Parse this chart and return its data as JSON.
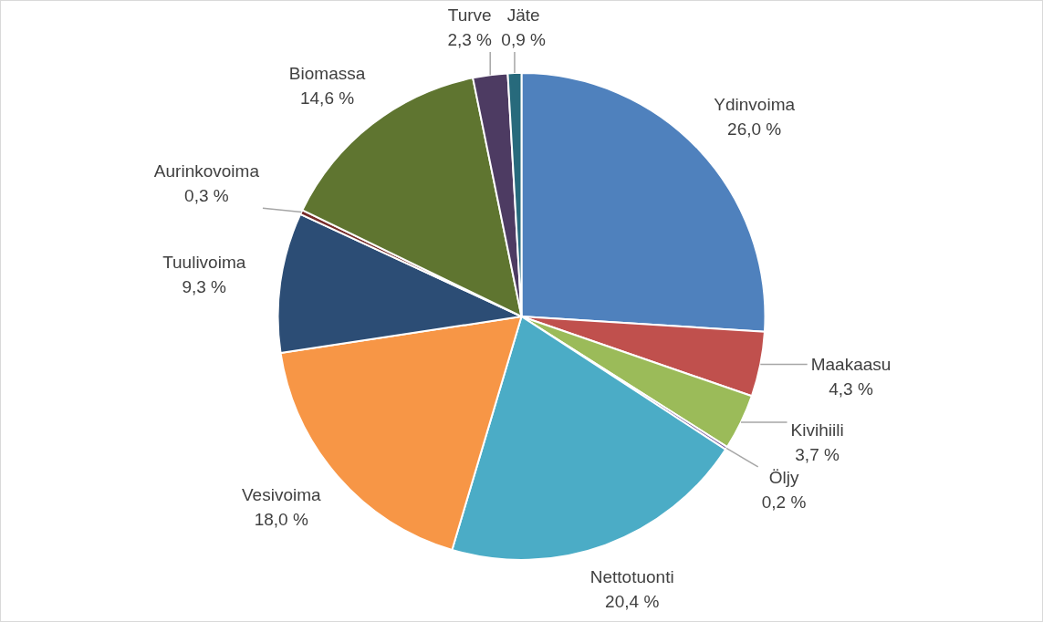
{
  "chart_data": {
    "type": "pie",
    "categories": [
      "Ydinvoima",
      "Maakaasu",
      "Kivihiili",
      "Öljy",
      "Nettotuonti",
      "Vesivoima",
      "Tuulivoima",
      "Aurinkovoima",
      "Biomassa",
      "Turve",
      "Jäte"
    ],
    "values": [
      26.0,
      4.3,
      3.7,
      0.2,
      20.4,
      18.0,
      9.3,
      0.3,
      14.6,
      2.3,
      0.9
    ],
    "value_labels": [
      "26,0 %",
      "4,3 %",
      "3,7 %",
      "0,2 %",
      "20,4 %",
      "18,0 %",
      "9,3 %",
      "0,3 %",
      "14,6 %",
      "2,3 %",
      "0,9 %"
    ],
    "colors": [
      "#4f81bd",
      "#c0504d",
      "#9bbb59",
      "#8064a2",
      "#4bacc6",
      "#f79646",
      "#2c4d75",
      "#772c2a",
      "#5f7530",
      "#4d3b62",
      "#276a7c"
    ],
    "legend": false
  }
}
